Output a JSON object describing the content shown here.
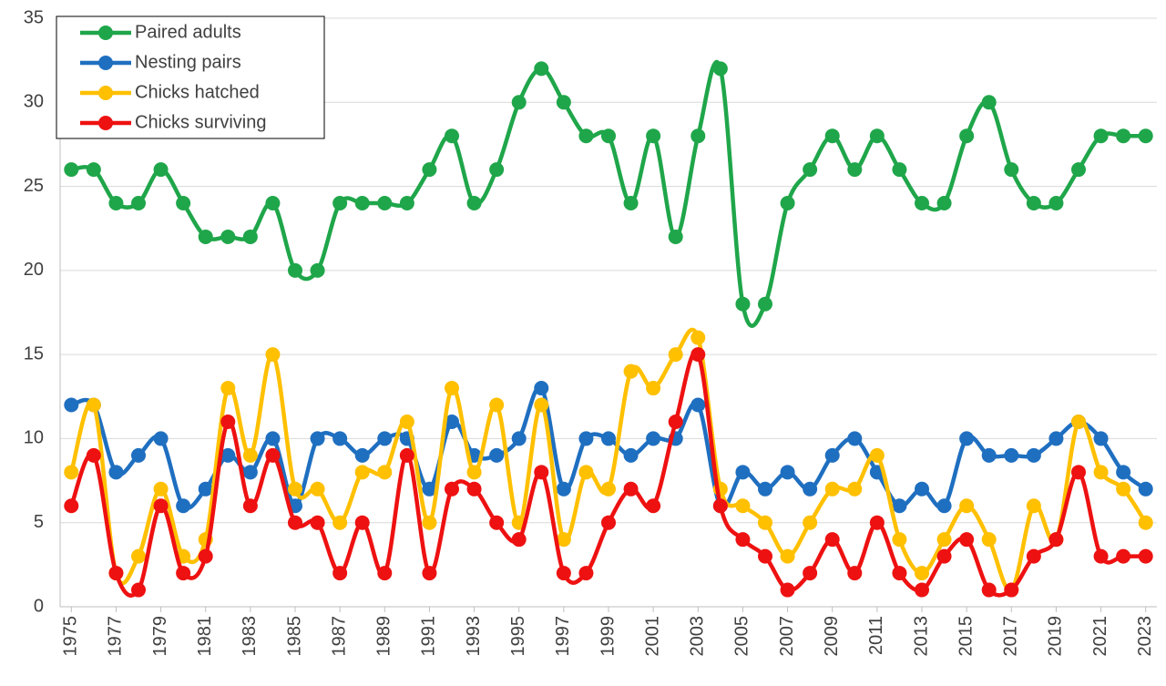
{
  "chart_data": {
    "type": "line",
    "x": [
      1975,
      1976,
      1977,
      1978,
      1979,
      1980,
      1981,
      1982,
      1983,
      1984,
      1985,
      1986,
      1987,
      1988,
      1989,
      1990,
      1991,
      1992,
      1993,
      1994,
      1995,
      1996,
      1997,
      1998,
      1999,
      2000,
      2001,
      2002,
      2003,
      2004,
      2005,
      2006,
      2007,
      2008,
      2009,
      2010,
      2011,
      2012,
      2013,
      2014,
      2015,
      2016,
      2017,
      2018,
      2019,
      2020,
      2021,
      2022,
      2023
    ],
    "series": [
      {
        "name": "Paired adults",
        "color": "#1fa64a",
        "values": [
          26,
          26,
          24,
          24,
          26,
          24,
          22,
          22,
          22,
          24,
          20,
          20,
          24,
          24,
          24,
          24,
          26,
          28,
          24,
          26,
          30,
          32,
          30,
          28,
          28,
          24,
          28,
          22,
          28,
          32,
          18,
          18,
          24,
          26,
          28,
          26,
          28,
          26,
          24,
          24,
          28,
          30,
          26,
          24,
          24,
          26,
          28,
          28,
          28
        ]
      },
      {
        "name": "Nesting pairs",
        "color": "#1f6fc0",
        "values": [
          12,
          12,
          8,
          9,
          10,
          6,
          7,
          9,
          8,
          10,
          6,
          10,
          10,
          9,
          10,
          10,
          7,
          11,
          9,
          9,
          10,
          13,
          7,
          10,
          10,
          9,
          10,
          10,
          12,
          6,
          8,
          7,
          8,
          7,
          9,
          10,
          8,
          6,
          7,
          6,
          10,
          9,
          9,
          9,
          10,
          11,
          10,
          8,
          7
        ]
      },
      {
        "name": "Chicks hatched",
        "color": "#ffc000",
        "values": [
          8,
          12,
          2,
          3,
          7,
          3,
          4,
          13,
          9,
          15,
          7,
          7,
          5,
          8,
          8,
          11,
          5,
          13,
          8,
          12,
          5,
          12,
          4,
          8,
          7,
          14,
          13,
          15,
          16,
          7,
          6,
          5,
          3,
          5,
          7,
          7,
          9,
          4,
          2,
          4,
          6,
          4,
          1,
          6,
          4,
          11,
          8,
          7,
          5
        ]
      },
      {
        "name": "Chicks surviving",
        "color": "#ee1111",
        "values": [
          6,
          9,
          2,
          1,
          6,
          2,
          3,
          11,
          6,
          9,
          5,
          5,
          2,
          5,
          2,
          9,
          2,
          7,
          7,
          5,
          4,
          8,
          2,
          2,
          5,
          7,
          6,
          11,
          15,
          6,
          4,
          3,
          1,
          2,
          4,
          2,
          5,
          2,
          1,
          3,
          4,
          1,
          1,
          3,
          4,
          8,
          3,
          3,
          3
        ]
      }
    ],
    "xlim": [
      1974.5,
      2023.5
    ],
    "xticks": [
      1975,
      1977,
      1979,
      1981,
      1983,
      1985,
      1987,
      1989,
      1991,
      1993,
      1995,
      1997,
      1999,
      2001,
      2003,
      2005,
      2007,
      2009,
      2011,
      2013,
      2015,
      2017,
      2019,
      2021,
      2023
    ],
    "ylim": [
      0,
      35
    ],
    "yticks": [
      0,
      5,
      10,
      15,
      20,
      25,
      30,
      35
    ],
    "grid": true,
    "smooth": true,
    "legend": "upper left"
  }
}
